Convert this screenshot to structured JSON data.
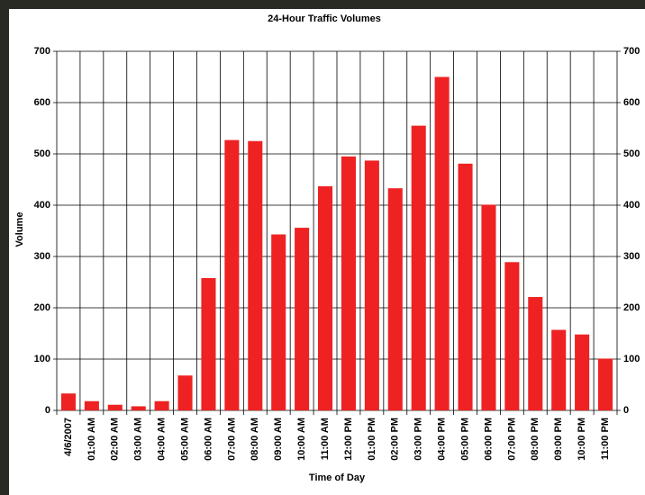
{
  "chart_data": {
    "type": "bar",
    "title": "24-Hour Traffic Volumes",
    "x_label": "Time of Day",
    "y_label": "Volume",
    "categories": [
      "4/6/2007",
      "01:00 AM",
      "02:00 AM",
      "03:00 AM",
      "04:00 AM",
      "05:00 AM",
      "06:00 AM",
      "07:00 AM",
      "08:00 AM",
      "09:00 AM",
      "10:00 AM",
      "11:00 AM",
      "12:00 PM",
      "01:00 PM",
      "02:00 PM",
      "03:00 PM",
      "04:00 PM",
      "05:00 PM",
      "06:00 PM",
      "07:00 PM",
      "08:00 PM",
      "09:00 PM",
      "10:00 PM",
      "11:00 PM"
    ],
    "values": [
      33,
      18,
      11,
      8,
      18,
      68,
      258,
      527,
      525,
      343,
      356,
      437,
      495,
      487,
      433,
      555,
      650,
      481,
      401,
      289,
      221,
      157,
      148,
      101
    ],
    "color": "#ee2222",
    "ylim": [
      0,
      700
    ],
    "yticks": [
      0,
      100,
      200,
      300,
      400,
      500,
      600,
      700
    ],
    "grid": true
  }
}
